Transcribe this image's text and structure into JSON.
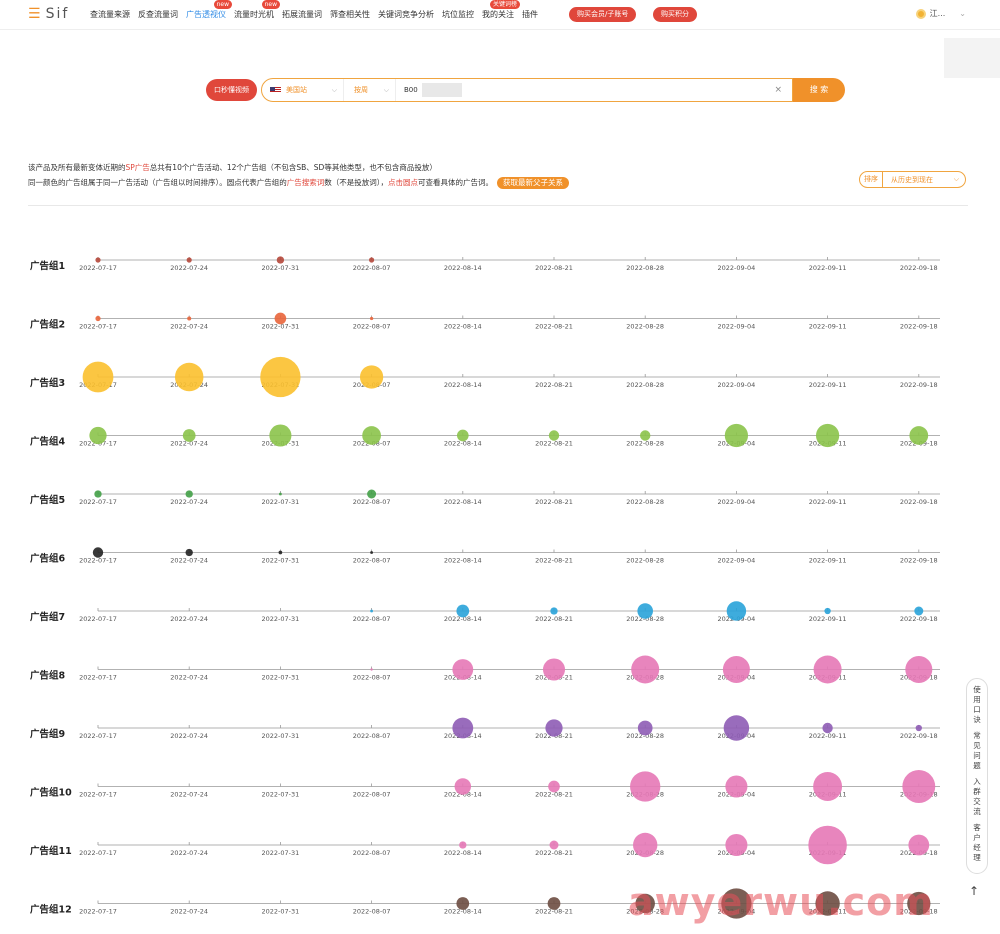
{
  "topbar": {
    "logo": "Sif",
    "nav": [
      {
        "label": "查流量来源",
        "active": false,
        "badge": ""
      },
      {
        "label": "反查流量词",
        "active": false,
        "badge": ""
      },
      {
        "label": "广告透视仪",
        "active": true,
        "badge": "new"
      },
      {
        "label": "流量时光机",
        "active": false,
        "badge": "new"
      },
      {
        "label": "拓展流量词",
        "active": false,
        "badge": ""
      },
      {
        "label": "筛查相关性",
        "active": false,
        "badge": ""
      },
      {
        "label": "关键词竞争分析",
        "active": false,
        "badge": ""
      },
      {
        "label": "坑位监控",
        "active": false,
        "badge": ""
      },
      {
        "label": "我的关注",
        "active": false,
        "badge": "关键词榜"
      },
      {
        "label": "插件",
        "active": false,
        "badge": ""
      }
    ],
    "buy_member": "购买会员/子账号",
    "buy_points": "购买积分",
    "user_name": "江..."
  },
  "search": {
    "video_btn": "口秒懂视频",
    "country": "美国站",
    "mode": "按周",
    "asin": "B00",
    "clear": "×",
    "submit": "搜 索"
  },
  "info": {
    "line1_a": "该产品及所有最新变体近期的",
    "line1_red": "SP广告",
    "line1_b": "总共有10个广告活动、12个广告组（不包含SB、SD等其他类型，也不包含商品投放）",
    "line2_a": "同一颜色的广告组属于同一广告活动（广告组以时间排序）。圆点代表广告组的",
    "line2_red1": "广告搜索词",
    "line2_b": "数（不是投放词），",
    "line2_red2": "点击圆点",
    "line2_c": "可查看具体的广告词。",
    "refresh_btn": "获取最新父子关系"
  },
  "sort": {
    "label": "排序",
    "value": "从历史到现在"
  },
  "chart_data": {
    "type": "scatter",
    "x": [
      "2022-07-17",
      "2022-07-24",
      "2022-07-31",
      "2022-08-07",
      "2022-08-14",
      "2022-08-21",
      "2022-08-28",
      "2022-09-04",
      "2022-09-11",
      "2022-09-18"
    ],
    "series": [
      {
        "name": "广告组1",
        "color": "#b5473a",
        "values": [
          1,
          1,
          2,
          1,
          0,
          0,
          0,
          0,
          0,
          0
        ]
      },
      {
        "name": "广告组2",
        "color": "#e9653b",
        "values": [
          1,
          0.6,
          5,
          0.4,
          0,
          0,
          0,
          0,
          0,
          0
        ]
      },
      {
        "name": "广告组3",
        "color": "#fbc02d",
        "values": [
          35,
          30,
          60,
          20,
          0,
          0,
          0,
          0,
          0,
          0
        ]
      },
      {
        "name": "广告组4",
        "color": "#8bc34a",
        "values": [
          11,
          6,
          18,
          13,
          5,
          4,
          4,
          20,
          20,
          13
        ]
      },
      {
        "name": "广告组5",
        "color": "#43a047",
        "values": [
          2,
          2,
          0.3,
          3,
          0,
          0,
          0,
          0,
          0,
          0
        ]
      },
      {
        "name": "广告组6",
        "color": "#222222",
        "values": [
          4,
          2,
          0.5,
          0.3,
          0,
          0,
          0,
          0,
          0,
          0
        ]
      },
      {
        "name": "广告组7",
        "color": "#29a3d9",
        "values": [
          0,
          0,
          0,
          0.3,
          6,
          2,
          9,
          14,
          1.5,
          3
        ]
      },
      {
        "name": "广告组8",
        "color": "#e678b6",
        "values": [
          0,
          0,
          0,
          0.2,
          16,
          18,
          29,
          27,
          29,
          27
        ]
      },
      {
        "name": "广告组9",
        "color": "#8e5cb5",
        "values": [
          0,
          0,
          0,
          0,
          16,
          11,
          8,
          24,
          4,
          1.5
        ]
      },
      {
        "name": "广告组10",
        "color": "#e678b6",
        "values": [
          0,
          0,
          0,
          0,
          10,
          5,
          34,
          18,
          31,
          40
        ]
      },
      {
        "name": "广告组11",
        "color": "#e678b6",
        "values": [
          0,
          0,
          0,
          0,
          2,
          3,
          22,
          18,
          55,
          16
        ]
      },
      {
        "name": "广告组12",
        "color": "#6d4c41",
        "values": [
          0,
          0,
          0,
          0,
          6,
          6,
          14,
          34,
          22,
          20
        ]
      }
    ]
  },
  "side_panel": [
    "使用口诀",
    "常见问题",
    "入群交流",
    "客户经理"
  ],
  "to_top": "↑",
  "watermark": "awyerwu.com"
}
